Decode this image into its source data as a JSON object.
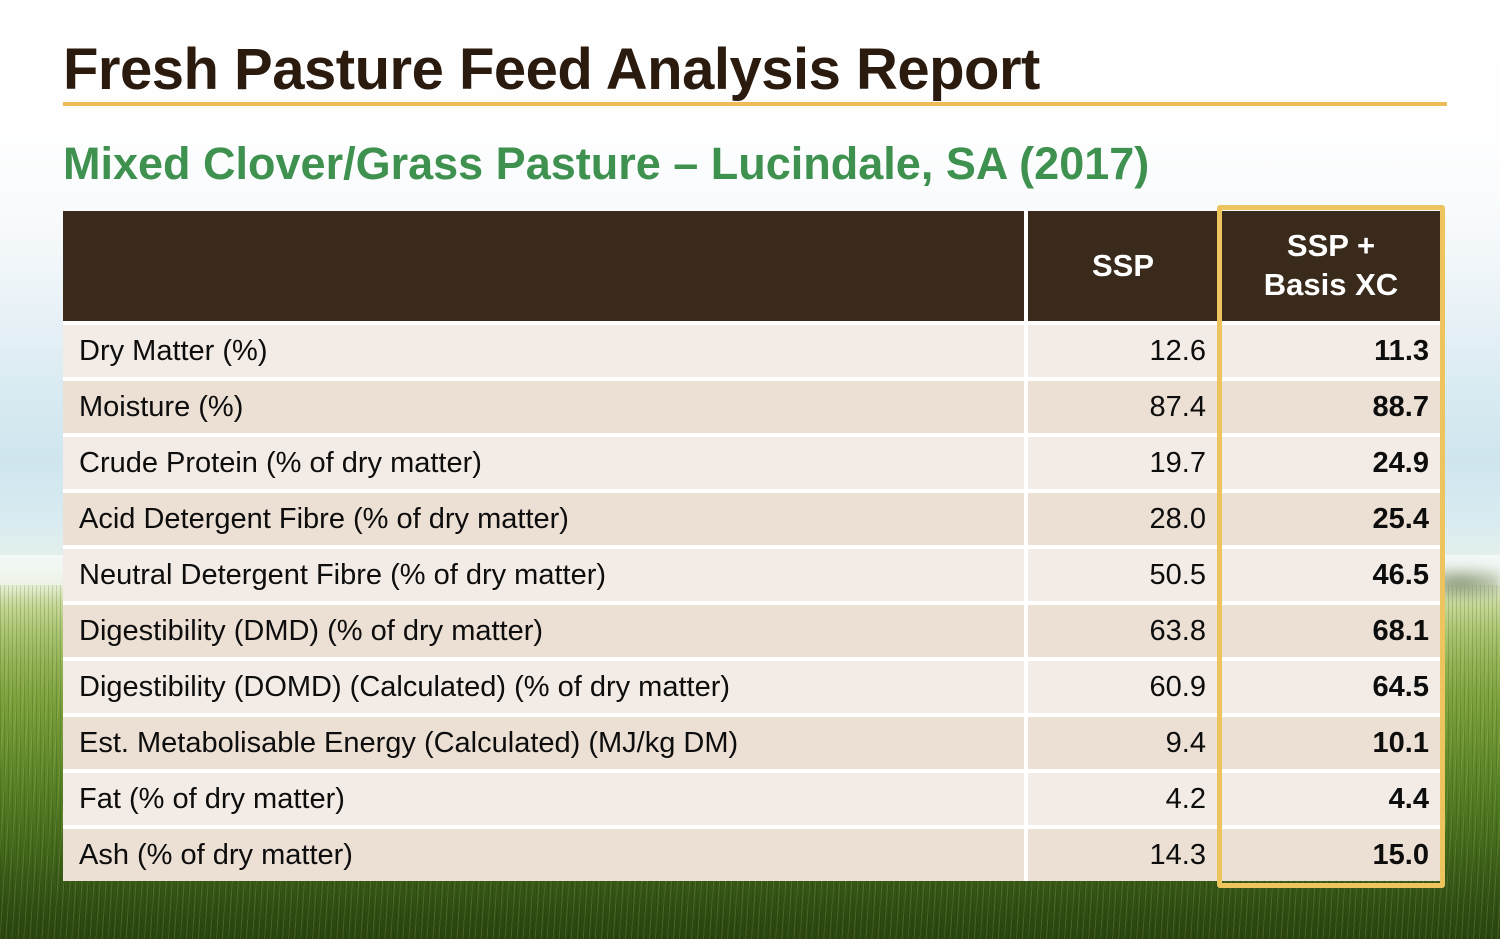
{
  "page": {
    "title": "Fresh Pasture Feed Analysis Report",
    "subtitle": "Mixed Clover/Grass Pasture – Lucindale, SA (2017)"
  },
  "colors": {
    "title_text": "#2b1a0e",
    "subtitle_text": "#3e914e",
    "accent_line": "#eebb58",
    "table_header_bg": "#3a2a1c",
    "table_header_text": "#ffffff",
    "row_light": "#f3ece6",
    "row_dark": "#ecdfd4",
    "highlight_border": "#eec45f"
  },
  "table": {
    "columns": [
      "",
      "SSP",
      "SSP +\nBasis XC"
    ],
    "highlighted_column": "SSP + Basis XC",
    "rows": [
      {
        "label": "Dry Matter (%)",
        "ssp": "12.6",
        "xc": "11.3"
      },
      {
        "label": "Moisture (%)",
        "ssp": "87.4",
        "xc": "88.7"
      },
      {
        "label": "Crude Protein (% of dry matter)",
        "ssp": "19.7",
        "xc": "24.9"
      },
      {
        "label": "Acid Detergent Fibre (% of dry matter)",
        "ssp": "28.0",
        "xc": "25.4"
      },
      {
        "label": "Neutral Detergent Fibre (% of dry matter)",
        "ssp": "50.5",
        "xc": "46.5"
      },
      {
        "label": "Digestibility (DMD) (% of dry matter)",
        "ssp": "63.8",
        "xc": "68.1"
      },
      {
        "label": "Digestibility (DOMD) (Calculated) (% of dry matter)",
        "ssp": "60.9",
        "xc": "64.5"
      },
      {
        "label": "Est. Metabolisable Energy (Calculated) (MJ/kg DM)",
        "ssp": "9.4",
        "xc": "10.1"
      },
      {
        "label": "Fat (% of dry matter)",
        "ssp": "4.2",
        "xc": "4.4"
      },
      {
        "label": "Ash (% of dry matter)",
        "ssp": "14.3",
        "xc": "15.0"
      }
    ]
  }
}
